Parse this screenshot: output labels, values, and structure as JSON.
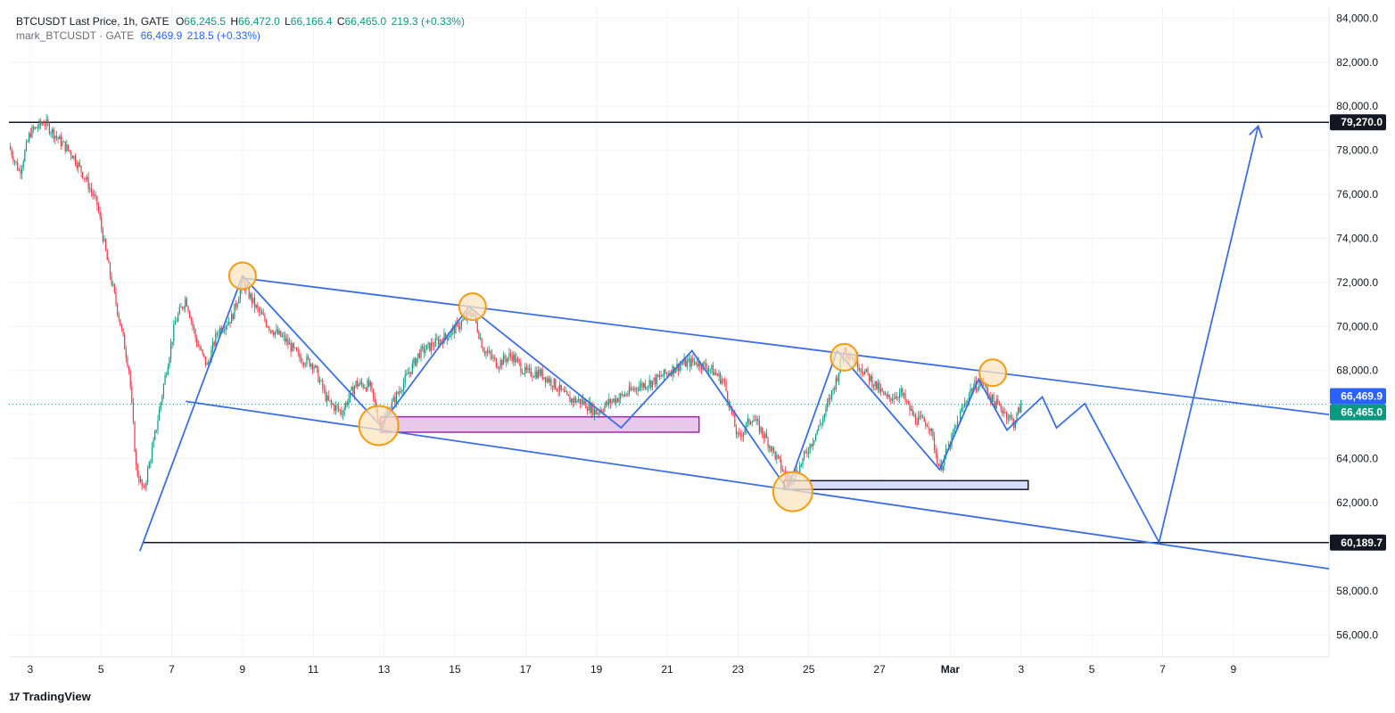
{
  "legend": {
    "symbol": "BTCUSDT Last Price, 1h, GATE",
    "open_label": "O",
    "open": "66,245.5",
    "high_label": "H",
    "high": "66,472.0",
    "low_label": "L",
    "low": "66,166.4",
    "close_label": "C",
    "close": "66,465.0",
    "change": "219.3 (+0.33%)",
    "mark_symbol": "mark_BTCUSDT · GATE",
    "mark_value": "66,469.9",
    "mark_change": "218.5 (+0.33%)"
  },
  "brand": {
    "name": "TradingView",
    "logo_text": "17"
  },
  "colors": {
    "up": "#089981",
    "down": "#f23645",
    "trend": "#3b6fe0",
    "orange": "#f39c12",
    "orange_fill": "#fce4c0",
    "purple_fill": "#e9c8ec",
    "purple_stroke": "#9b27af",
    "blue_fill": "#d5defc",
    "axis_text": "#131722"
  },
  "chart_data": {
    "type": "line",
    "title": "BTCUSDT Last Price, 1h, GATE",
    "ylim": [
      55000,
      84500
    ],
    "xlim": [
      2.4,
      39.7
    ],
    "yticks": [
      {
        "v": 84000,
        "label": "84,000.0"
      },
      {
        "v": 82000,
        "label": "82,000.0"
      },
      {
        "v": 80000,
        "label": "80,000.0"
      },
      {
        "v": 78000,
        "label": "78,000.0"
      },
      {
        "v": 76000,
        "label": "76,000.0"
      },
      {
        "v": 74000,
        "label": "74,000.0"
      },
      {
        "v": 72000,
        "label": "72,000.0"
      },
      {
        "v": 70000,
        "label": "70,000.0"
      },
      {
        "v": 68000,
        "label": "68,000.0"
      },
      {
        "v": 66000,
        "label": "66,000.0"
      },
      {
        "v": 64000,
        "label": "64,000.0"
      },
      {
        "v": 62000,
        "label": "62,000.0"
      },
      {
        "v": 58000,
        "label": "58,000.0"
      },
      {
        "v": 56000,
        "label": "56,000.0"
      }
    ],
    "xticks": [
      {
        "d": 3,
        "label": "3"
      },
      {
        "d": 5,
        "label": "5"
      },
      {
        "d": 7,
        "label": "7"
      },
      {
        "d": 9,
        "label": "9"
      },
      {
        "d": 11,
        "label": "11"
      },
      {
        "d": 13,
        "label": "13"
      },
      {
        "d": 15,
        "label": "15"
      },
      {
        "d": 17,
        "label": "17"
      },
      {
        "d": 19,
        "label": "19"
      },
      {
        "d": 21,
        "label": "21"
      },
      {
        "d": 23,
        "label": "23"
      },
      {
        "d": 25,
        "label": "25"
      },
      {
        "d": 27,
        "label": "27"
      },
      {
        "d": 29,
        "label": "Mar"
      },
      {
        "d": 31,
        "label": "3"
      },
      {
        "d": 33,
        "label": "5"
      },
      {
        "d": 35,
        "label": "7"
      },
      {
        "d": 37,
        "label": "9"
      }
    ],
    "price_path": [
      [
        2.4,
        78200
      ],
      [
        2.7,
        77000
      ],
      [
        3.0,
        78800
      ],
      [
        3.4,
        79300
      ],
      [
        3.8,
        78500
      ],
      [
        4.2,
        77800
      ],
      [
        4.6,
        76600
      ],
      [
        4.9,
        75500
      ],
      [
        5.2,
        72800
      ],
      [
        5.5,
        70500
      ],
      [
        5.8,
        68000
      ],
      [
        6.0,
        63500
      ],
      [
        6.2,
        62500
      ],
      [
        6.5,
        64800
      ],
      [
        6.8,
        67600
      ],
      [
        7.1,
        70200
      ],
      [
        7.4,
        71300
      ],
      [
        7.7,
        69300
      ],
      [
        8.0,
        68200
      ],
      [
        8.3,
        69800
      ],
      [
        8.7,
        70400
      ],
      [
        9.0,
        72000
      ],
      [
        9.4,
        70800
      ],
      [
        9.8,
        69900
      ],
      [
        10.2,
        69400
      ],
      [
        10.6,
        68600
      ],
      [
        11.0,
        68300
      ],
      [
        11.4,
        66600
      ],
      [
        11.8,
        66100
      ],
      [
        12.2,
        67400
      ],
      [
        12.6,
        67300
      ],
      [
        12.9,
        65500
      ],
      [
        13.2,
        66400
      ],
      [
        13.6,
        67600
      ],
      [
        14.0,
        68800
      ],
      [
        14.4,
        69200
      ],
      [
        14.8,
        69600
      ],
      [
        15.2,
        70200
      ],
      [
        15.5,
        70700
      ],
      [
        15.8,
        69000
      ],
      [
        16.2,
        68300
      ],
      [
        16.6,
        68700
      ],
      [
        17.0,
        67900
      ],
      [
        17.4,
        67900
      ],
      [
        17.8,
        67400
      ],
      [
        18.2,
        66700
      ],
      [
        18.6,
        66600
      ],
      [
        19.0,
        66100
      ],
      [
        19.4,
        66600
      ],
      [
        19.8,
        66900
      ],
      [
        20.2,
        67300
      ],
      [
        20.6,
        67500
      ],
      [
        21.0,
        67900
      ],
      [
        21.4,
        68300
      ],
      [
        21.8,
        68400
      ],
      [
        22.2,
        68100
      ],
      [
        22.6,
        67500
      ],
      [
        23.0,
        64900
      ],
      [
        23.4,
        65900
      ],
      [
        23.8,
        64900
      ],
      [
        24.2,
        63700
      ],
      [
        24.4,
        63000
      ],
      [
        24.7,
        63500
      ],
      [
        25.0,
        64500
      ],
      [
        25.4,
        65800
      ],
      [
        25.8,
        67700
      ],
      [
        26.0,
        69000
      ],
      [
        26.4,
        68300
      ],
      [
        26.8,
        67500
      ],
      [
        27.2,
        66700
      ],
      [
        27.6,
        67000
      ],
      [
        28.0,
        65800
      ],
      [
        28.4,
        65600
      ],
      [
        28.7,
        63500
      ],
      [
        29.0,
        64700
      ],
      [
        29.3,
        66100
      ],
      [
        29.6,
        67200
      ],
      [
        29.9,
        67500
      ],
      [
        30.2,
        66600
      ],
      [
        30.5,
        66200
      ],
      [
        30.8,
        65600
      ],
      [
        31.0,
        66466
      ]
    ],
    "series": [
      {
        "name": "BTCUSDT Last Price",
        "values": [
          66465.0
        ]
      },
      {
        "name": "mark_BTCUSDT",
        "values": [
          66469.9
        ]
      }
    ],
    "horizontal_levels": [
      {
        "name": "resistance",
        "value": 79270,
        "label": "79,270.0",
        "x_from": 2.4
      },
      {
        "name": "support",
        "value": 60189.7,
        "label": "60,189.7",
        "x_from": 6.2
      }
    ],
    "price_labels": [
      {
        "name": "mark-price",
        "value": 66469.9,
        "label": "66,469.9",
        "color": "#2962ff"
      },
      {
        "name": "last-price",
        "value": 66465.0,
        "label": "66,465.0",
        "color": "#089981"
      }
    ],
    "channel_lines": [
      {
        "name": "channel-upper",
        "points": [
          [
            9.0,
            72200
          ],
          [
            39.7,
            66000
          ]
        ]
      },
      {
        "name": "channel-lower",
        "points": [
          [
            7.4,
            66600
          ],
          [
            39.7,
            59000
          ]
        ]
      }
    ],
    "zigzag": [
      [
        6.1,
        59800
      ],
      [
        9.0,
        72300
      ],
      [
        12.9,
        65500
      ],
      [
        15.4,
        70900
      ],
      [
        19.7,
        65400
      ],
      [
        21.7,
        68900
      ],
      [
        24.4,
        62600
      ],
      [
        25.8,
        68900
      ],
      [
        28.7,
        63500
      ],
      [
        29.8,
        67600
      ],
      [
        30.6,
        65300
      ],
      [
        31.6,
        66800
      ],
      [
        32.0,
        65400
      ],
      [
        32.8,
        66500
      ],
      [
        34.9,
        60200
      ],
      [
        37.7,
        79100
      ]
    ],
    "arrow_head": [
      37.7,
      79100
    ],
    "highlight_circles": [
      {
        "x": 9.0,
        "y": 72300,
        "size": "small"
      },
      {
        "x": 15.5,
        "y": 70900,
        "size": "small"
      },
      {
        "x": 12.85,
        "y": 65500,
        "size": "large"
      },
      {
        "x": 24.55,
        "y": 62500,
        "size": "large"
      },
      {
        "x": 26.0,
        "y": 68600,
        "size": "small"
      },
      {
        "x": 30.2,
        "y": 67900,
        "size": "small"
      }
    ],
    "zones": [
      {
        "name": "demand-zone-purple",
        "x": [
          12.9,
          21.9
        ],
        "y": [
          65200,
          65900
        ],
        "style": "purple"
      },
      {
        "name": "demand-zone-blue",
        "x": [
          24.3,
          31.2
        ],
        "y": [
          62600,
          63000
        ],
        "style": "blue"
      }
    ]
  }
}
